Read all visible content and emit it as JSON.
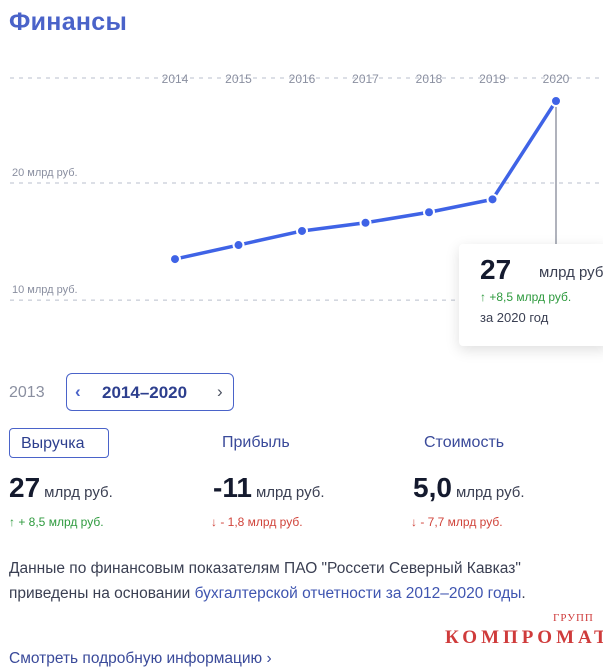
{
  "page": {
    "title": "Финансы"
  },
  "chart_data": {
    "type": "line",
    "x": [
      "2014",
      "2015",
      "2016",
      "2017",
      "2018",
      "2019",
      "2020"
    ],
    "series": [
      {
        "values": [
          13.5,
          14.7,
          15.9,
          16.6,
          17.5,
          18.6,
          27
        ]
      }
    ],
    "y_gridlines": [
      20,
      10
    ],
    "y_tick_labels": [
      "20 млрд руб.",
      "10 млрд руб."
    ],
    "ylim": [
      7.7,
      30.5
    ],
    "highlight_index": 6,
    "colors": {
      "line": "#3f63e6",
      "grid": "#b9bfcc",
      "tick": "#8a8fa0"
    }
  },
  "tooltip": {
    "value": "27",
    "unit": "млрд руб.",
    "delta": "↑ +8,5 млрд руб.",
    "period": "за 2020 год"
  },
  "period": {
    "prev_year": "2013",
    "range": "2014–2020",
    "prev_icon": "chevron-left-icon",
    "next_icon": "chevron-right-icon"
  },
  "tabs": [
    {
      "label": "Выручка",
      "value": "27",
      "unit": "млрд руб.",
      "delta": "↑ + 8,5 млрд руб.",
      "direction": "up"
    },
    {
      "label": "Прибыль",
      "value": "-11",
      "unit": "млрд руб.",
      "delta": "↓ - 1,8 млрд руб.",
      "direction": "down"
    },
    {
      "label": "Стоимость",
      "value": "5,0",
      "unit": "млрд руб.",
      "delta": "↓ - 7,7 млрд руб.",
      "direction": "down"
    }
  ],
  "description": {
    "text": "Данные по финансовым показателям ПАО \"Россети Северный Кавказ\" приведены на основании ",
    "link": "бухгалтерской отчетности за 2012–2020 годы",
    "end": "."
  },
  "more_link": "Смотреть подробную информацию  ›",
  "watermark": {
    "main": "КОМПРОМАТ",
    "small": "ГРУПП"
  }
}
